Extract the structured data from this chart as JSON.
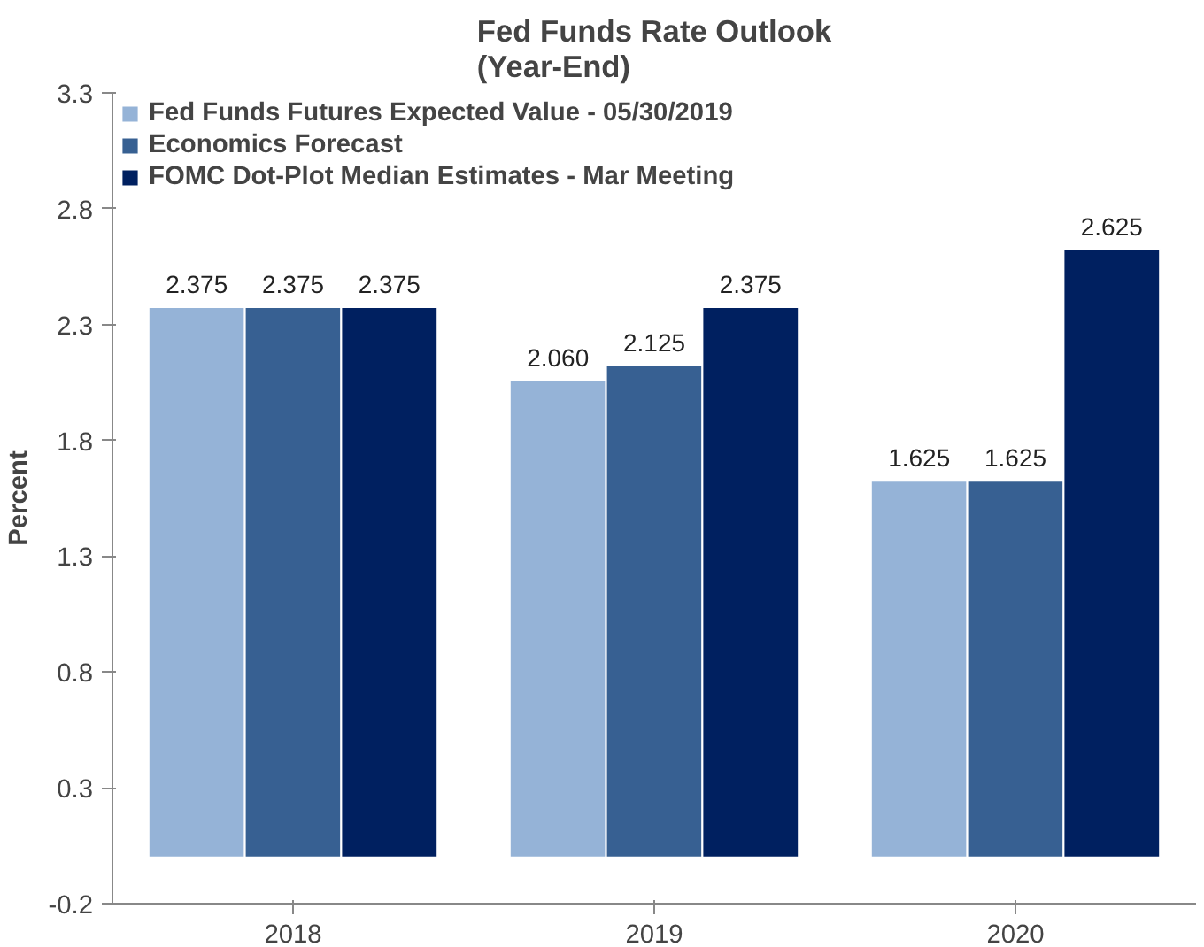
{
  "chart_data": {
    "type": "bar",
    "title": "Fed Funds Rate Outlook\n(Year-End)",
    "ylabel": "Percent",
    "categories": [
      "2018",
      "2019",
      "2020"
    ],
    "series": [
      {
        "name": "Fed Funds Futures Expected Value - 05/30/2019",
        "color": "#95b3d7",
        "values": [
          2.375,
          2.06,
          1.625
        ],
        "value_labels": [
          "2.375",
          "2.060",
          "1.625"
        ]
      },
      {
        "name": "Economics Forecast",
        "color": "#376092",
        "values": [
          2.375,
          2.125,
          1.625
        ],
        "value_labels": [
          "2.375",
          "2.125",
          "1.625"
        ]
      },
      {
        "name": "FOMC Dot-Plot Median Estimates - Mar Meeting",
        "color": "#002060",
        "values": [
          2.375,
          2.375,
          2.625
        ],
        "value_labels": [
          "2.375",
          "2.375",
          "2.625"
        ]
      }
    ],
    "ylim": [
      -0.2,
      3.3
    ],
    "yticks": [
      -0.2,
      0.3,
      0.8,
      1.3,
      1.8,
      2.3,
      2.8,
      3.3
    ],
    "grid": false,
    "legend": "top left"
  }
}
